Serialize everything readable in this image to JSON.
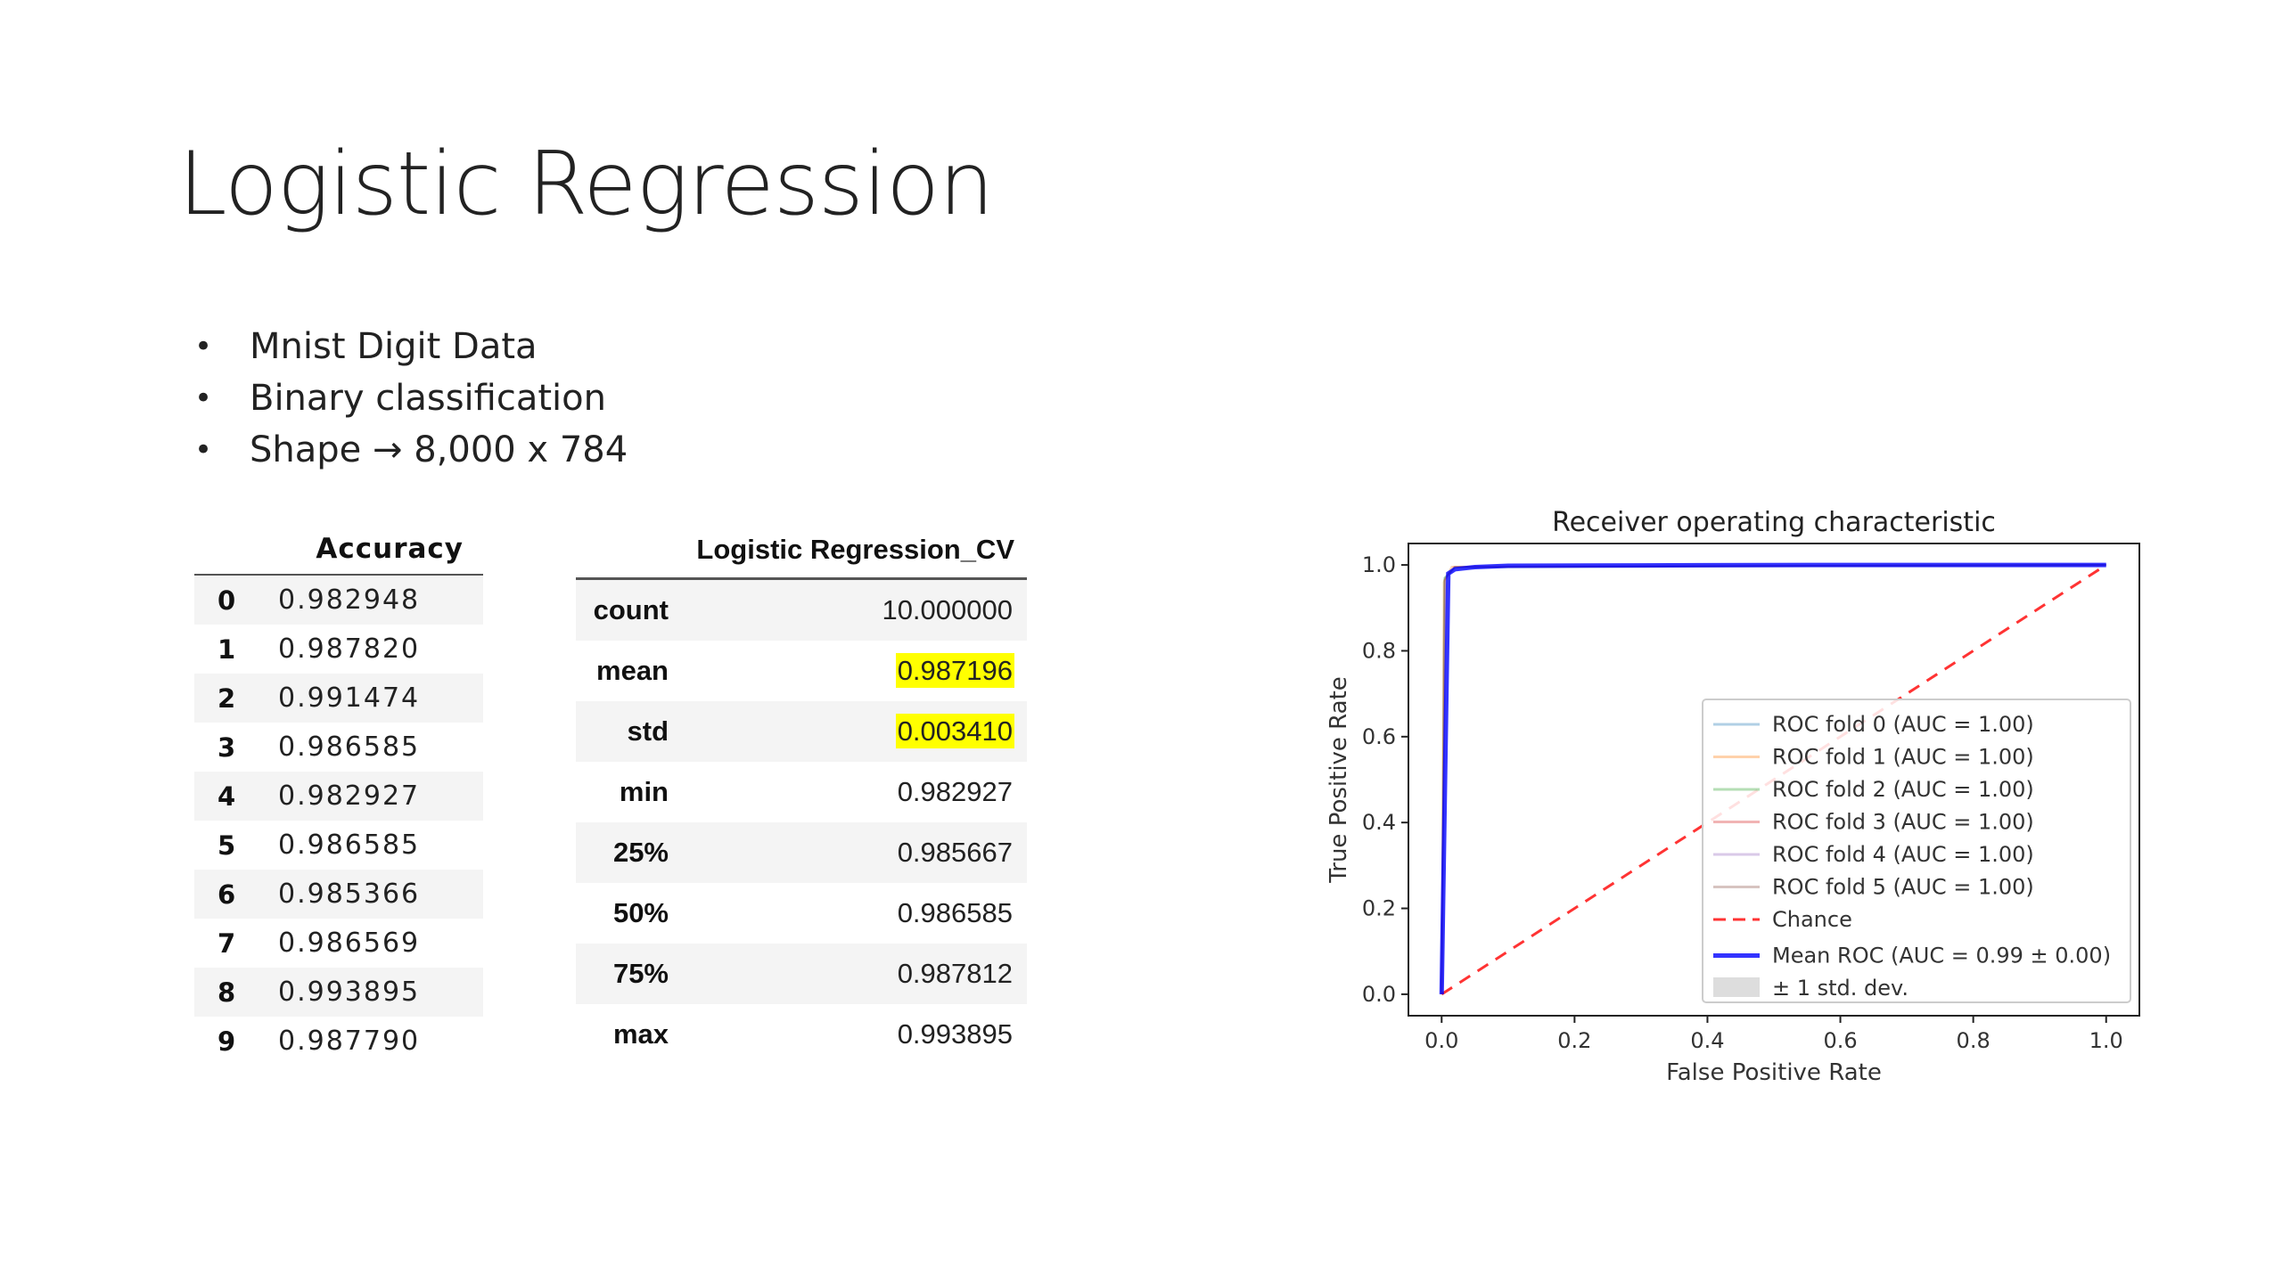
{
  "slide": {
    "title": "Logistic Regression",
    "bullets": [
      "Mnist Digit Data",
      "Binary classification",
      "Shape → 8,000 x 784"
    ]
  },
  "accuracy_table": {
    "header": "Accuracy",
    "rows": [
      {
        "index": "0",
        "value": "0.982948"
      },
      {
        "index": "1",
        "value": "0.987820"
      },
      {
        "index": "2",
        "value": "0.991474"
      },
      {
        "index": "3",
        "value": "0.986585"
      },
      {
        "index": "4",
        "value": "0.982927"
      },
      {
        "index": "5",
        "value": "0.986585"
      },
      {
        "index": "6",
        "value": "0.985366"
      },
      {
        "index": "7",
        "value": "0.986569"
      },
      {
        "index": "8",
        "value": "0.993895"
      },
      {
        "index": "9",
        "value": "0.987790"
      }
    ]
  },
  "describe_table": {
    "header": "Logistic Regression_CV",
    "highlight_color": "#ffff00",
    "rows": [
      {
        "label": "count",
        "value": "10.000000",
        "highlight": false
      },
      {
        "label": "mean",
        "value": "0.987196",
        "highlight": true
      },
      {
        "label": "std",
        "value": "0.003410",
        "highlight": true
      },
      {
        "label": "min",
        "value": "0.982927",
        "highlight": false
      },
      {
        "label": "25%",
        "value": "0.985667",
        "highlight": false
      },
      {
        "label": "50%",
        "value": "0.986585",
        "highlight": false
      },
      {
        "label": "75%",
        "value": "0.987812",
        "highlight": false
      },
      {
        "label": "max",
        "value": "0.993895",
        "highlight": false
      }
    ]
  },
  "chart_data": {
    "type": "line",
    "title": "Receiver operating characteristic",
    "xlabel": "False Positive Rate",
    "ylabel": "True Positive Rate",
    "xlim": [
      -0.05,
      1.05
    ],
    "ylim": [
      -0.05,
      1.05
    ],
    "xticks": [
      "0.0",
      "0.2",
      "0.4",
      "0.6",
      "0.8",
      "1.0"
    ],
    "yticks": [
      "0.0",
      "0.2",
      "0.4",
      "0.6",
      "0.8",
      "1.0"
    ],
    "grid": false,
    "legend_position": "lower right",
    "series": [
      {
        "name": "ROC fold 0 (AUC = 1.00)",
        "color": "#1f77b4",
        "style": "solid",
        "alpha": 0.3,
        "x": [
          0,
          0.005,
          0.02,
          1
        ],
        "y": [
          0,
          0.97,
          0.995,
          1
        ]
      },
      {
        "name": "ROC fold 1 (AUC = 1.00)",
        "color": "#ff7f0e",
        "style": "solid",
        "alpha": 0.3,
        "x": [
          0,
          0.003,
          0.015,
          1
        ],
        "y": [
          0,
          0.96,
          0.996,
          1
        ]
      },
      {
        "name": "ROC fold 2 (AUC = 1.00)",
        "color": "#2ca02c",
        "style": "solid",
        "alpha": 0.3,
        "x": [
          0,
          0.004,
          0.02,
          1
        ],
        "y": [
          0,
          0.97,
          0.994,
          1
        ]
      },
      {
        "name": "ROC fold 3 (AUC = 1.00)",
        "color": "#d62728",
        "style": "solid",
        "alpha": 0.3,
        "x": [
          0,
          0.005,
          0.018,
          1
        ],
        "y": [
          0,
          0.965,
          0.995,
          1
        ]
      },
      {
        "name": "ROC fold 4 (AUC = 1.00)",
        "color": "#9467bd",
        "style": "solid",
        "alpha": 0.3,
        "x": [
          0,
          0.006,
          0.02,
          1
        ],
        "y": [
          0,
          0.97,
          0.995,
          1
        ]
      },
      {
        "name": "ROC fold 5 (AUC = 1.00)",
        "color": "#8c564b",
        "style": "solid",
        "alpha": 0.3,
        "x": [
          0,
          0.004,
          0.02,
          1
        ],
        "y": [
          0,
          0.965,
          0.996,
          1
        ]
      },
      {
        "name": "Chance",
        "color": "#ff0000",
        "style": "dashed",
        "alpha": 0.8,
        "x": [
          0,
          1
        ],
        "y": [
          0,
          1
        ]
      },
      {
        "name": "Mean ROC (AUC = 0.99 ± 0.00)",
        "color": "#0000ff",
        "style": "solid",
        "alpha": 0.8,
        "x": [
          0,
          0.01,
          0.02,
          0.05,
          0.1,
          0.3,
          0.6,
          1.0
        ],
        "y": [
          0,
          0.98,
          0.99,
          0.995,
          0.998,
          0.999,
          1.0,
          1.0
        ]
      },
      {
        "name": "± 1 std. dev.",
        "color": "#bbbbbb",
        "style": "band",
        "alpha": 0.5,
        "x": [],
        "y": []
      }
    ]
  }
}
